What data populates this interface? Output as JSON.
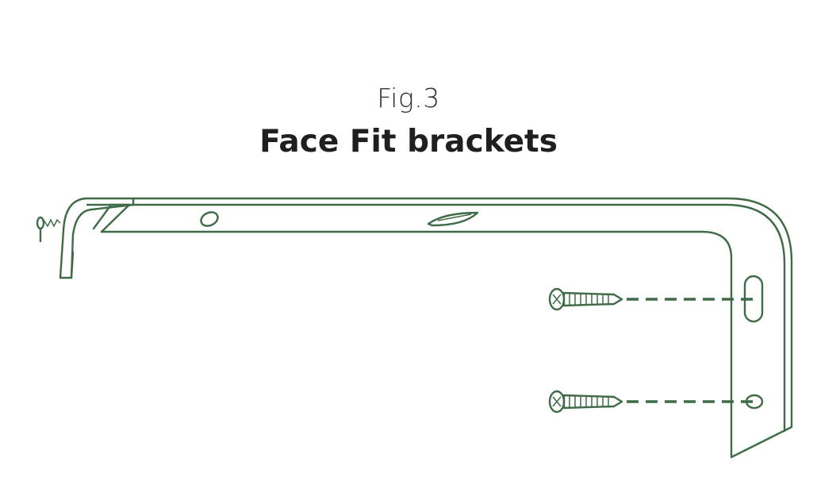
{
  "figure": {
    "label": "Fig.3",
    "title": "Face Fit brackets"
  },
  "colors": {
    "line": "#3f6b47",
    "title_text": "#1f1f1f",
    "background": "#ffffff"
  }
}
